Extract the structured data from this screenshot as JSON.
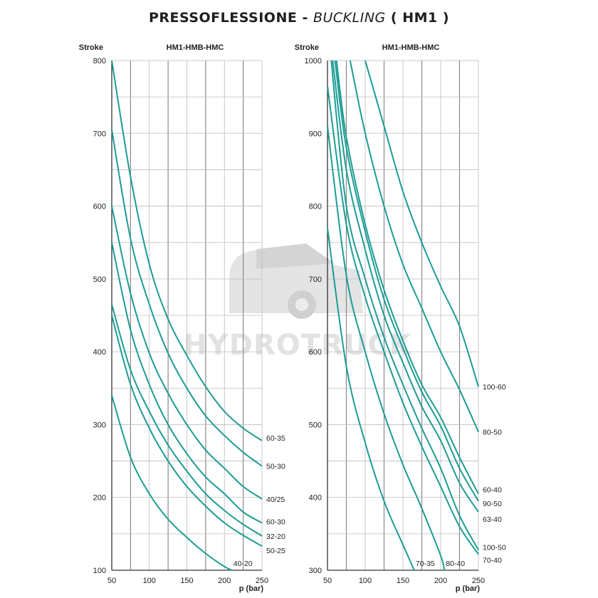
{
  "title": {
    "main": "PRESSOFLESSIONE -",
    "italic": "BUCKLING",
    "suffix": "( HM1 )"
  },
  "watermark": {
    "text": "HYDROTRUCK",
    "icon": "truck-icon"
  },
  "colors": {
    "curve": "#1c9c94",
    "grid": "#8a8a8a",
    "grid_light": "#bdbdbd",
    "axis": "#333333"
  },
  "chart_data": [
    {
      "type": "line",
      "ylabel": "Stroke",
      "header": "HM1-HMB-HMC",
      "xlabel": "p (bar)",
      "xlim": [
        50,
        250
      ],
      "ylim": [
        100,
        800
      ],
      "xticks": [
        50,
        100,
        150,
        200,
        250
      ],
      "yticks": [
        100,
        200,
        300,
        400,
        500,
        600,
        700,
        800
      ],
      "grid": true,
      "series": [
        {
          "name": "60-35",
          "x": [
            50,
            75,
            100,
            125,
            150,
            175,
            200,
            225,
            250
          ],
          "y": [
            800,
            640,
            520,
            445,
            395,
            352,
            318,
            295,
            278
          ]
        },
        {
          "name": "50-30",
          "x": [
            50,
            75,
            100,
            125,
            150,
            175,
            200,
            225,
            250
          ],
          "y": [
            705,
            555,
            465,
            398,
            350,
            312,
            285,
            262,
            243
          ]
        },
        {
          "name": "40/25",
          "x": [
            50,
            75,
            100,
            125,
            150,
            175,
            200,
            225,
            250
          ],
          "y": [
            600,
            480,
            398,
            343,
            300,
            265,
            240,
            215,
            198
          ]
        },
        {
          "name": "60-30",
          "x": [
            50,
            75,
            100,
            125,
            150,
            175,
            200,
            225,
            250
          ],
          "y": [
            550,
            430,
            355,
            300,
            260,
            228,
            205,
            180,
            165
          ]
        },
        {
          "name": "32-20",
          "x": [
            50,
            75,
            100,
            125,
            150,
            175,
            200,
            225,
            250
          ],
          "y": [
            465,
            375,
            318,
            272,
            236,
            205,
            182,
            163,
            147
          ]
        },
        {
          "name": "50-25",
          "x": [
            50,
            75,
            100,
            125,
            150,
            175,
            200,
            225,
            250
          ],
          "y": [
            450,
            355,
            295,
            250,
            215,
            188,
            165,
            148,
            133
          ]
        },
        {
          "name": "40-20",
          "x": [
            50,
            75,
            100,
            125,
            150,
            175,
            200,
            210
          ],
          "y": [
            340,
            255,
            205,
            170,
            145,
            123,
            105,
            100
          ]
        }
      ]
    },
    {
      "type": "line",
      "ylabel": "Stroke",
      "header": "HM1-HMB-HMC",
      "xlabel": "p (bar)",
      "xlim": [
        50,
        250
      ],
      "ylim": [
        300,
        1000
      ],
      "xticks": [
        50,
        100,
        150,
        200,
        250
      ],
      "yticks": [
        300,
        400,
        500,
        600,
        700,
        800,
        900,
        1000
      ],
      "grid": true,
      "series": [
        {
          "name": "100-60",
          "x": [
            100,
            125,
            150,
            175,
            200,
            225,
            250
          ],
          "y": [
            1000,
            910,
            820,
            750,
            690,
            635,
            552
          ]
        },
        {
          "name": "80-50",
          "x": [
            80,
            100,
            125,
            150,
            175,
            200,
            225,
            250
          ],
          "y": [
            1000,
            900,
            800,
            720,
            660,
            600,
            548,
            490
          ]
        },
        {
          "name": "60-40",
          "x": [
            62,
            75,
            100,
            125,
            150,
            175,
            200,
            225,
            250
          ],
          "y": [
            1000,
            895,
            775,
            685,
            615,
            555,
            510,
            455,
            405
          ]
        },
        {
          "name": "90-50",
          "x": [
            60,
            75,
            100,
            125,
            150,
            175,
            200,
            225,
            250
          ],
          "y": [
            1000,
            880,
            765,
            672,
            605,
            545,
            498,
            440,
            395
          ]
        },
        {
          "name": "63-40",
          "x": [
            57,
            75,
            100,
            125,
            150,
            175,
            200,
            225,
            250
          ],
          "y": [
            1000,
            850,
            740,
            650,
            585,
            525,
            478,
            420,
            380
          ]
        },
        {
          "name": "100-50",
          "x": [
            55,
            75,
            100,
            125,
            150,
            175,
            200,
            225,
            250
          ],
          "y": [
            1000,
            800,
            700,
            620,
            555,
            495,
            440,
            375,
            328
          ]
        },
        {
          "name": "70-40",
          "x": [
            50,
            75,
            100,
            125,
            150,
            175,
            200,
            225,
            250
          ],
          "y": [
            965,
            775,
            675,
            600,
            530,
            470,
            415,
            360,
            322
          ]
        },
        {
          "name": "80-40",
          "x": [
            50,
            75,
            100,
            125,
            150,
            175,
            200,
            205
          ],
          "y": [
            910,
            705,
            600,
            515,
            445,
            385,
            320,
            300
          ]
        },
        {
          "name": "70-35",
          "x": [
            50,
            75,
            100,
            125,
            150,
            165
          ],
          "y": [
            770,
            580,
            475,
            395,
            335,
            300
          ]
        }
      ]
    }
  ]
}
